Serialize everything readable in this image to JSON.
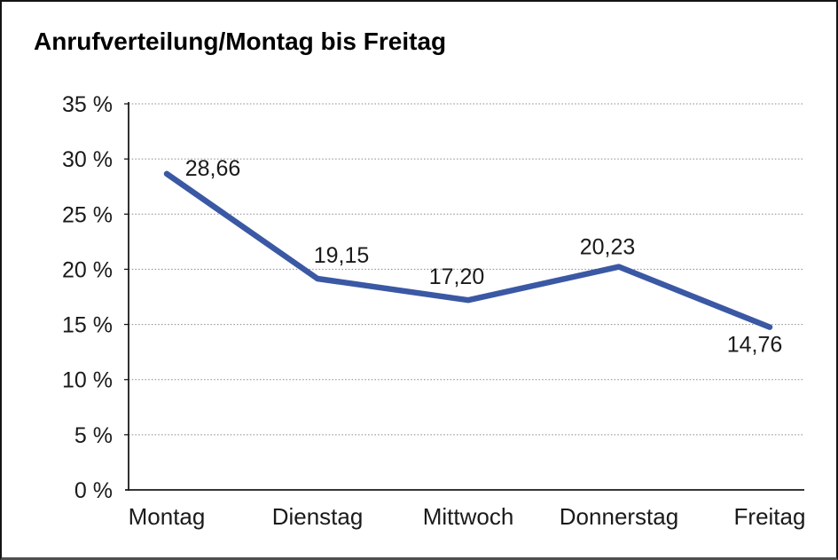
{
  "chart_data": {
    "type": "line",
    "title": "Anrufverteilung/Montag bis Freitag",
    "categories": [
      "Montag",
      "Dienstag",
      "Mittwoch",
      "Donnerstag",
      "Freitag"
    ],
    "series": [
      {
        "name": "Anrufverteilung",
        "values": [
          28.66,
          19.15,
          17.2,
          20.23,
          14.76
        ]
      }
    ],
    "data_labels": [
      "28,66",
      "19,15",
      "17,20",
      "20,23",
      "14,76"
    ],
    "y_tick_labels": [
      "0 %",
      "5 %",
      "10 %",
      "15 %",
      "20 %",
      "25 %",
      "30 %",
      "35 %"
    ],
    "ylim": [
      0,
      35
    ],
    "y_step": 5,
    "xlabel": "",
    "ylabel": "",
    "grid": "horizontal-dotted",
    "legend": "none",
    "colors": {
      "line": "#3A58A4",
      "axis": "#1a1a1a",
      "gridline": "#888888",
      "text": "#1a1a1a",
      "background": "#ffffff"
    }
  }
}
